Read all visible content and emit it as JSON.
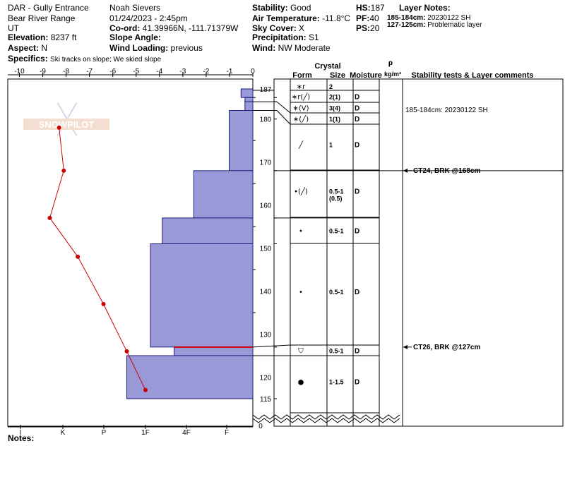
{
  "header": {
    "location": "DAR - Gully Entrance",
    "range": "Bear River Range",
    "state": "UT",
    "elevation_label": "Elevation:",
    "elevation": "8237 ft",
    "aspect_label": "Aspect:",
    "aspect": "N",
    "observer": "Noah Sievers",
    "datetime": "01/24/2023 - 2:45pm",
    "coord_label": "Co-ord:",
    "coord": "41.39966N, -111.71379W",
    "slope_label": "Slope Angle:",
    "slope": "",
    "wind_loading_label": "Wind Loading:",
    "wind_loading": "previous",
    "specifics_label": "Specifics:",
    "specifics": "Ski tracks on slope; We skied slope",
    "stability_label": "Stability:",
    "stability": "Good",
    "air_temp_label": "Air Temperature:",
    "air_temp": "-11.8°C",
    "sky_label": "Sky Cover:",
    "sky": "X",
    "precip_label": "Precipitation:",
    "precip": "S1",
    "wind_label": "Wind:",
    "wind": "NW Moderate",
    "hs_label": "HS:",
    "hs": "187",
    "pf_label": "PF:",
    "pf": "40",
    "ps_label": "PS:",
    "ps": "20",
    "layer_notes_title": "Layer Notes:",
    "layer_notes": [
      {
        "depth": "185-184cm:",
        "text": "20230122 SH"
      },
      {
        "depth": "127-125cm:",
        "text": "Problematic layer"
      }
    ],
    "notes_label": "Notes:"
  },
  "watermark": "SNOWPILOT",
  "columns": {
    "crystal": "Crystal",
    "form": "Form",
    "size": "Size",
    "moisture": "Moisture",
    "rho": "ρ",
    "density_unit": "kg/m³",
    "comments": "Stability tests & Layer comments"
  },
  "chart_data": {
    "type": "snow-profile",
    "temperature_axis": {
      "ticks": [
        "-10",
        "-9",
        "-8",
        "-7",
        "-6",
        "-5",
        "-4",
        "-3",
        "-2",
        "-1",
        "0"
      ],
      "range": [
        -10,
        0
      ]
    },
    "hardness_axis": {
      "ticks": [
        "I",
        "K",
        "P",
        "1F",
        "4F",
        "F"
      ]
    },
    "depth_axis": {
      "range": [
        115,
        187
      ],
      "ticks": [
        "187",
        "180",
        "170",
        "160",
        "150",
        "140",
        "130",
        "120",
        "115"
      ],
      "bottom_label": "0"
    },
    "hardness_layers": [
      {
        "top": 187,
        "bottom": 185,
        "hardness": 0.3
      },
      {
        "top": 185,
        "bottom": 184,
        "hardness": 0.2
      },
      {
        "top": 184,
        "bottom": 182,
        "hardness": 0.2
      },
      {
        "top": 182,
        "bottom": 168,
        "hardness": 0.6
      },
      {
        "top": 168,
        "bottom": 157,
        "hardness": 1.5
      },
      {
        "top": 157,
        "bottom": 151,
        "hardness": 2.3
      },
      {
        "top": 151,
        "bottom": 127,
        "hardness": 2.6
      },
      {
        "top": 127,
        "bottom": 125,
        "hardness": 2.0
      },
      {
        "top": 125,
        "bottom": 115,
        "hardness": 3.2
      }
    ],
    "temperature_profile": [
      {
        "depth": 178,
        "temp": -8.3
      },
      {
        "depth": 168,
        "temp": -8.1
      },
      {
        "depth": 157,
        "temp": -8.7
      },
      {
        "depth": 148,
        "temp": -7.5
      },
      {
        "depth": 137,
        "temp": -6.4
      },
      {
        "depth": 126,
        "temp": -5.4
      },
      {
        "depth": 117,
        "temp": -4.6
      }
    ],
    "layers": [
      {
        "top": 187,
        "bottom": 185,
        "form": "∗r",
        "size": "2",
        "moisture": ""
      },
      {
        "top": 185,
        "bottom": 184,
        "form": "∗r(╱)",
        "size": "2(1)",
        "moisture": "D"
      },
      {
        "top": 184,
        "bottom": 182,
        "form": "∗(V)",
        "size": "3(4)",
        "moisture": "D"
      },
      {
        "top": 182,
        "bottom": 180,
        "form": "∗(╱)",
        "size": "1(1)",
        "moisture": "D"
      },
      {
        "top": 180,
        "bottom": 168,
        "form": "╱",
        "size": "1",
        "moisture": "D"
      },
      {
        "top": 168,
        "bottom": 157,
        "form": "•(╱)",
        "size": "0.5-1 (0.5)",
        "moisture": "D"
      },
      {
        "top": 157,
        "bottom": 151,
        "form": "•",
        "size": "0.5-1",
        "moisture": "D"
      },
      {
        "top": 151,
        "bottom": 127,
        "form": "•",
        "size": "0.5-1",
        "moisture": "D"
      },
      {
        "top": 127,
        "bottom": 125,
        "form": "⛉",
        "size": "0.5-1",
        "moisture": "D"
      },
      {
        "top": 125,
        "bottom": 115,
        "form": "●",
        "size": "1-1.5",
        "moisture": "D"
      }
    ],
    "comments": [
      {
        "depth": 184.5,
        "text": "185-184cm: 20230122 SH",
        "arrow": false
      },
      {
        "depth": 168,
        "text": "CT24, BRK @168cm",
        "arrow": true
      },
      {
        "depth": 127,
        "text": "CT26, BRK @127cm",
        "arrow": true
      }
    ],
    "colors": {
      "hardness_fill": "#9999d8",
      "hardness_stroke": "#1a1a80",
      "temperature": "#cc0000",
      "problem_layer": "#cc0000"
    }
  }
}
